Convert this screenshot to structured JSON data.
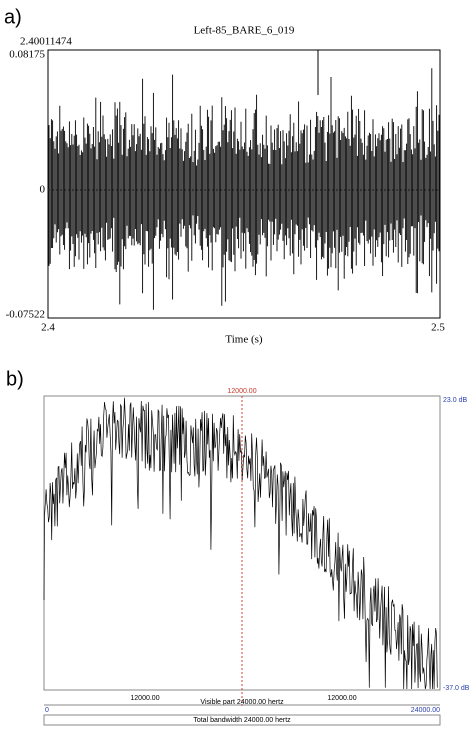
{
  "panels": [
    {
      "label": "a)",
      "title": "Left-85_BARE_6_019",
      "cursor": "2.40011474",
      "ymax": "0.08175",
      "yzero": "0",
      "ymin": "-0.07522",
      "xmin": "2.4",
      "xmax": "2.5",
      "xlabel": "Time (s)"
    },
    {
      "label": "b)",
      "cursor": "12000.00",
      "top": "23.0 dB",
      "bottom": "-37.0 dB",
      "left_freq": "12000.00",
      "visible": "Visible part 24000.00 hertz",
      "right_freq": "12000.00",
      "start": "0",
      "end": "24000.00",
      "total": "Total bandwidth 24000.00 hertz"
    }
  ]
}
